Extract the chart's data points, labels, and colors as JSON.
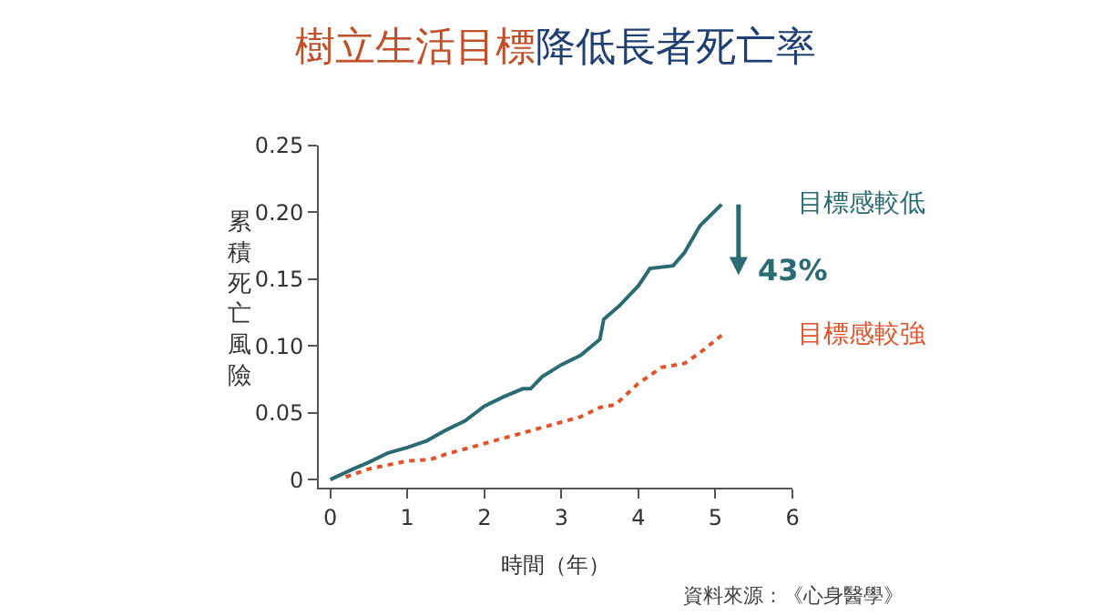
{
  "chart_data": {
    "type": "line",
    "title": "樹立生活目標降低長者死亡率",
    "xlabel": "時間（年）",
    "ylabel": "累積死亡風險",
    "xlim": [
      -0.15,
      6
    ],
    "ylim": [
      -0.006,
      0.25
    ],
    "xticks": [
      0,
      1,
      2,
      3,
      4,
      5,
      6
    ],
    "yticks": [
      {
        "value": 0,
        "label": "0"
      },
      {
        "value": 0.05,
        "label": "0.05"
      },
      {
        "value": 0.1,
        "label": "0.10"
      },
      {
        "value": 0.15,
        "label": "0.15"
      },
      {
        "value": 0.2,
        "label": "0.20"
      },
      {
        "value": 0.25,
        "label": "0.25"
      }
    ],
    "legend": false,
    "marker": "none",
    "series": [
      {
        "name": "目標感較低",
        "color": "#2a6b72",
        "line_style": "solid",
        "x": [
          0,
          0.3,
          0.5,
          0.75,
          1,
          1.25,
          1.5,
          1.75,
          2,
          2.25,
          2.5,
          2.6,
          2.75,
          3,
          3.25,
          3.5,
          3.55,
          3.75,
          4,
          4.15,
          4.45,
          4.6,
          4.8,
          5.08
        ],
        "values": [
          0,
          0.008,
          0.013,
          0.02,
          0.024,
          0.029,
          0.037,
          0.044,
          0.055,
          0.062,
          0.068,
          0.068,
          0.077,
          0.086,
          0.093,
          0.105,
          0.12,
          0.13,
          0.145,
          0.158,
          0.16,
          0.17,
          0.19,
          0.206
        ]
      },
      {
        "name": "目標感較強",
        "color": "#e0532b",
        "line_style": "dotted",
        "x": [
          0.2,
          0.5,
          1,
          1.3,
          1.5,
          2,
          2.5,
          3,
          3.25,
          3.5,
          3.7,
          4,
          4.3,
          4.6,
          4.8,
          5.08
        ],
        "values": [
          0.002,
          0.008,
          0.014,
          0.015,
          0.019,
          0.027,
          0.035,
          0.043,
          0.047,
          0.054,
          0.056,
          0.072,
          0.084,
          0.087,
          0.095,
          0.108
        ]
      }
    ],
    "annotations": [
      "43%",
      "資料來源：《心身醫學》"
    ]
  }
}
